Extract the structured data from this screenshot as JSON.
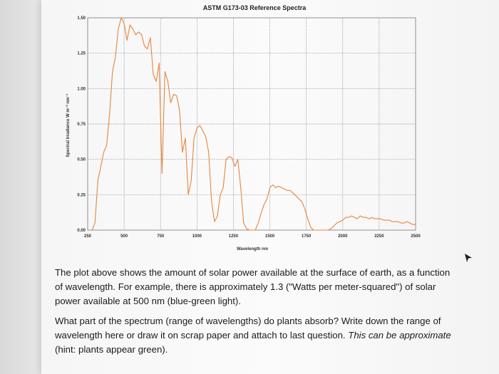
{
  "chart_data": {
    "type": "line",
    "title": "ASTM G173-03 Reference Spectra",
    "xlabel": "Wavelength nm",
    "ylabel": "Spectral Irradiance W m⁻² nm⁻¹",
    "xlim": [
      250,
      2500
    ],
    "ylim": [
      0,
      1.5
    ],
    "xticks": [
      "250",
      "500",
      "750",
      "1000",
      "1250",
      "1500",
      "1750",
      "2000",
      "2250",
      "2500"
    ],
    "yticks": [
      "0.00",
      "0.25",
      "0.50",
      "0.75",
      "1.00",
      "1.25",
      "1.50"
    ],
    "grid": true,
    "series": [
      {
        "color": "#e8843e",
        "x": [
          280,
          300,
          320,
          340,
          360,
          380,
          400,
          420,
          440,
          460,
          480,
          500,
          520,
          540,
          560,
          580,
          600,
          620,
          640,
          660,
          680,
          700,
          720,
          740,
          760,
          780,
          800,
          820,
          840,
          860,
          880,
          900,
          920,
          940,
          960,
          980,
          1000,
          1020,
          1040,
          1060,
          1080,
          1100,
          1120,
          1140,
          1160,
          1180,
          1200,
          1220,
          1240,
          1260,
          1280,
          1300,
          1320,
          1340,
          1360,
          1380,
          1400,
          1420,
          1440,
          1460,
          1480,
          1500,
          1520,
          1540,
          1560,
          1580,
          1600,
          1620,
          1640,
          1660,
          1680,
          1700,
          1720,
          1740,
          1760,
          1780,
          1800,
          1820,
          1840,
          1860,
          1880,
          1900,
          1920,
          1940,
          1960,
          1980,
          2000,
          2020,
          2040,
          2060,
          2080,
          2100,
          2120,
          2140,
          2160,
          2180,
          2200,
          2220,
          2240,
          2260,
          2280,
          2300,
          2320,
          2340,
          2360,
          2380,
          2400,
          2420,
          2440,
          2460,
          2480,
          2500
        ],
        "y": [
          0.0,
          0.05,
          0.35,
          0.45,
          0.55,
          0.6,
          0.82,
          1.12,
          1.22,
          1.42,
          1.5,
          1.46,
          1.34,
          1.45,
          1.42,
          1.38,
          1.4,
          1.38,
          1.3,
          1.28,
          1.36,
          1.1,
          1.05,
          1.18,
          0.4,
          1.12,
          1.05,
          0.9,
          0.96,
          0.95,
          0.85,
          0.55,
          0.65,
          0.25,
          0.35,
          0.65,
          0.72,
          0.74,
          0.7,
          0.66,
          0.55,
          0.2,
          0.06,
          0.1,
          0.25,
          0.3,
          0.5,
          0.52,
          0.51,
          0.45,
          0.5,
          0.3,
          0.05,
          0.01,
          0.0,
          0.0,
          0.0,
          0.05,
          0.12,
          0.18,
          0.22,
          0.3,
          0.32,
          0.3,
          0.31,
          0.3,
          0.29,
          0.28,
          0.28,
          0.26,
          0.24,
          0.22,
          0.2,
          0.15,
          0.08,
          0.02,
          0.0,
          0.0,
          0.0,
          0.0,
          0.0,
          0.0,
          0.01,
          0.03,
          0.05,
          0.06,
          0.07,
          0.09,
          0.09,
          0.1,
          0.09,
          0.08,
          0.1,
          0.09,
          0.09,
          0.08,
          0.09,
          0.08,
          0.08,
          0.08,
          0.07,
          0.07,
          0.07,
          0.06,
          0.06,
          0.06,
          0.05,
          0.05,
          0.06,
          0.05,
          0.04,
          0.04
        ]
      }
    ]
  },
  "question": {
    "paragraph1": "The plot above shows the amount of solar power available at the surface of earth, as a function of wavelength. For example, there is approximately 1.3 (\"Watts per meter-squared\") of solar power available at 500 nm (blue-green light).",
    "paragraph2_main": "What part of the spectrum (range of wavelengths) do plants absorb? Write down the range of wavelength here or draw it on scrap paper and attach to last question. ",
    "paragraph2_italic": "This can be approximate",
    "paragraph2_tail": " (hint: plants appear green)."
  },
  "colors": {
    "line": "#e8843e",
    "grid": "#9a9a9a",
    "text": "#1b1b1b"
  },
  "icons": {
    "cursor": "mouse-pointer-icon"
  }
}
